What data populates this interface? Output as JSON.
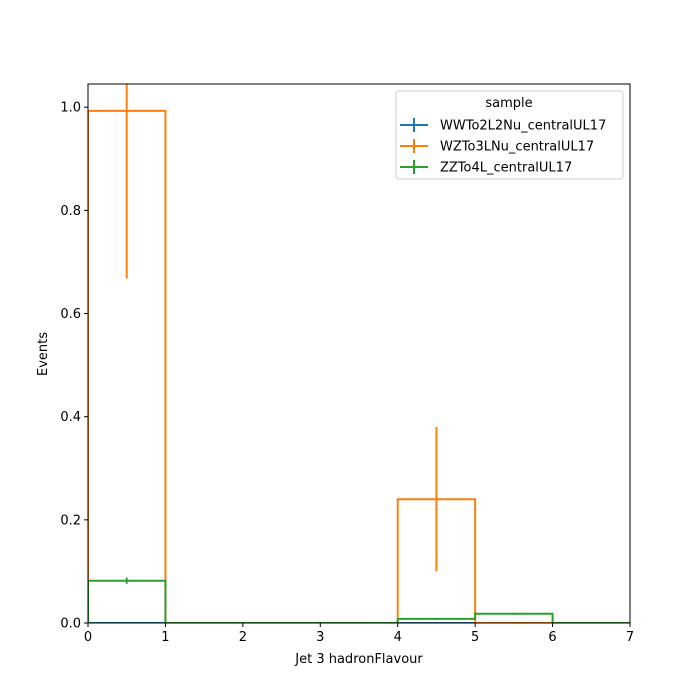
{
  "chart_data": {
    "type": "histogram",
    "xlabel": "Jet 3 hadronFlavour",
    "ylabel": "Events",
    "xlim": [
      0,
      7
    ],
    "ylim": [
      0,
      1.045
    ],
    "xticks": [
      "0",
      "1",
      "2",
      "3",
      "4",
      "5",
      "6",
      "7"
    ],
    "yticks": [
      "0.0",
      "0.2",
      "0.4",
      "0.6",
      "0.8",
      "1.0"
    ],
    "bin_edges": [
      0,
      1,
      2,
      3,
      4,
      5,
      6,
      7
    ],
    "grid": false,
    "legend": {
      "title": "sample",
      "placement": "top-right"
    },
    "series": [
      {
        "name": "WWTo2L2Nu_centralUL17",
        "color": "#1f77b4",
        "values": [
          0,
          0,
          0,
          0,
          0,
          0,
          0
        ],
        "errors": [
          0,
          0,
          0,
          0,
          0,
          0,
          0
        ]
      },
      {
        "name": "WZTo3LNu_centralUL17",
        "color": "#ff7f0e",
        "values": [
          0.993,
          0,
          0,
          0,
          0.24,
          0,
          0
        ],
        "errors": [
          0.325,
          0,
          0,
          0,
          0.14,
          0,
          0
        ]
      },
      {
        "name": "ZZTo4L_centralUL17",
        "color": "#2ca02c",
        "values": [
          0.082,
          0,
          0,
          0,
          0.008,
          0.018,
          0
        ],
        "errors": [
          0.006,
          0,
          0,
          0,
          0.002,
          0.002,
          0
        ]
      }
    ]
  }
}
